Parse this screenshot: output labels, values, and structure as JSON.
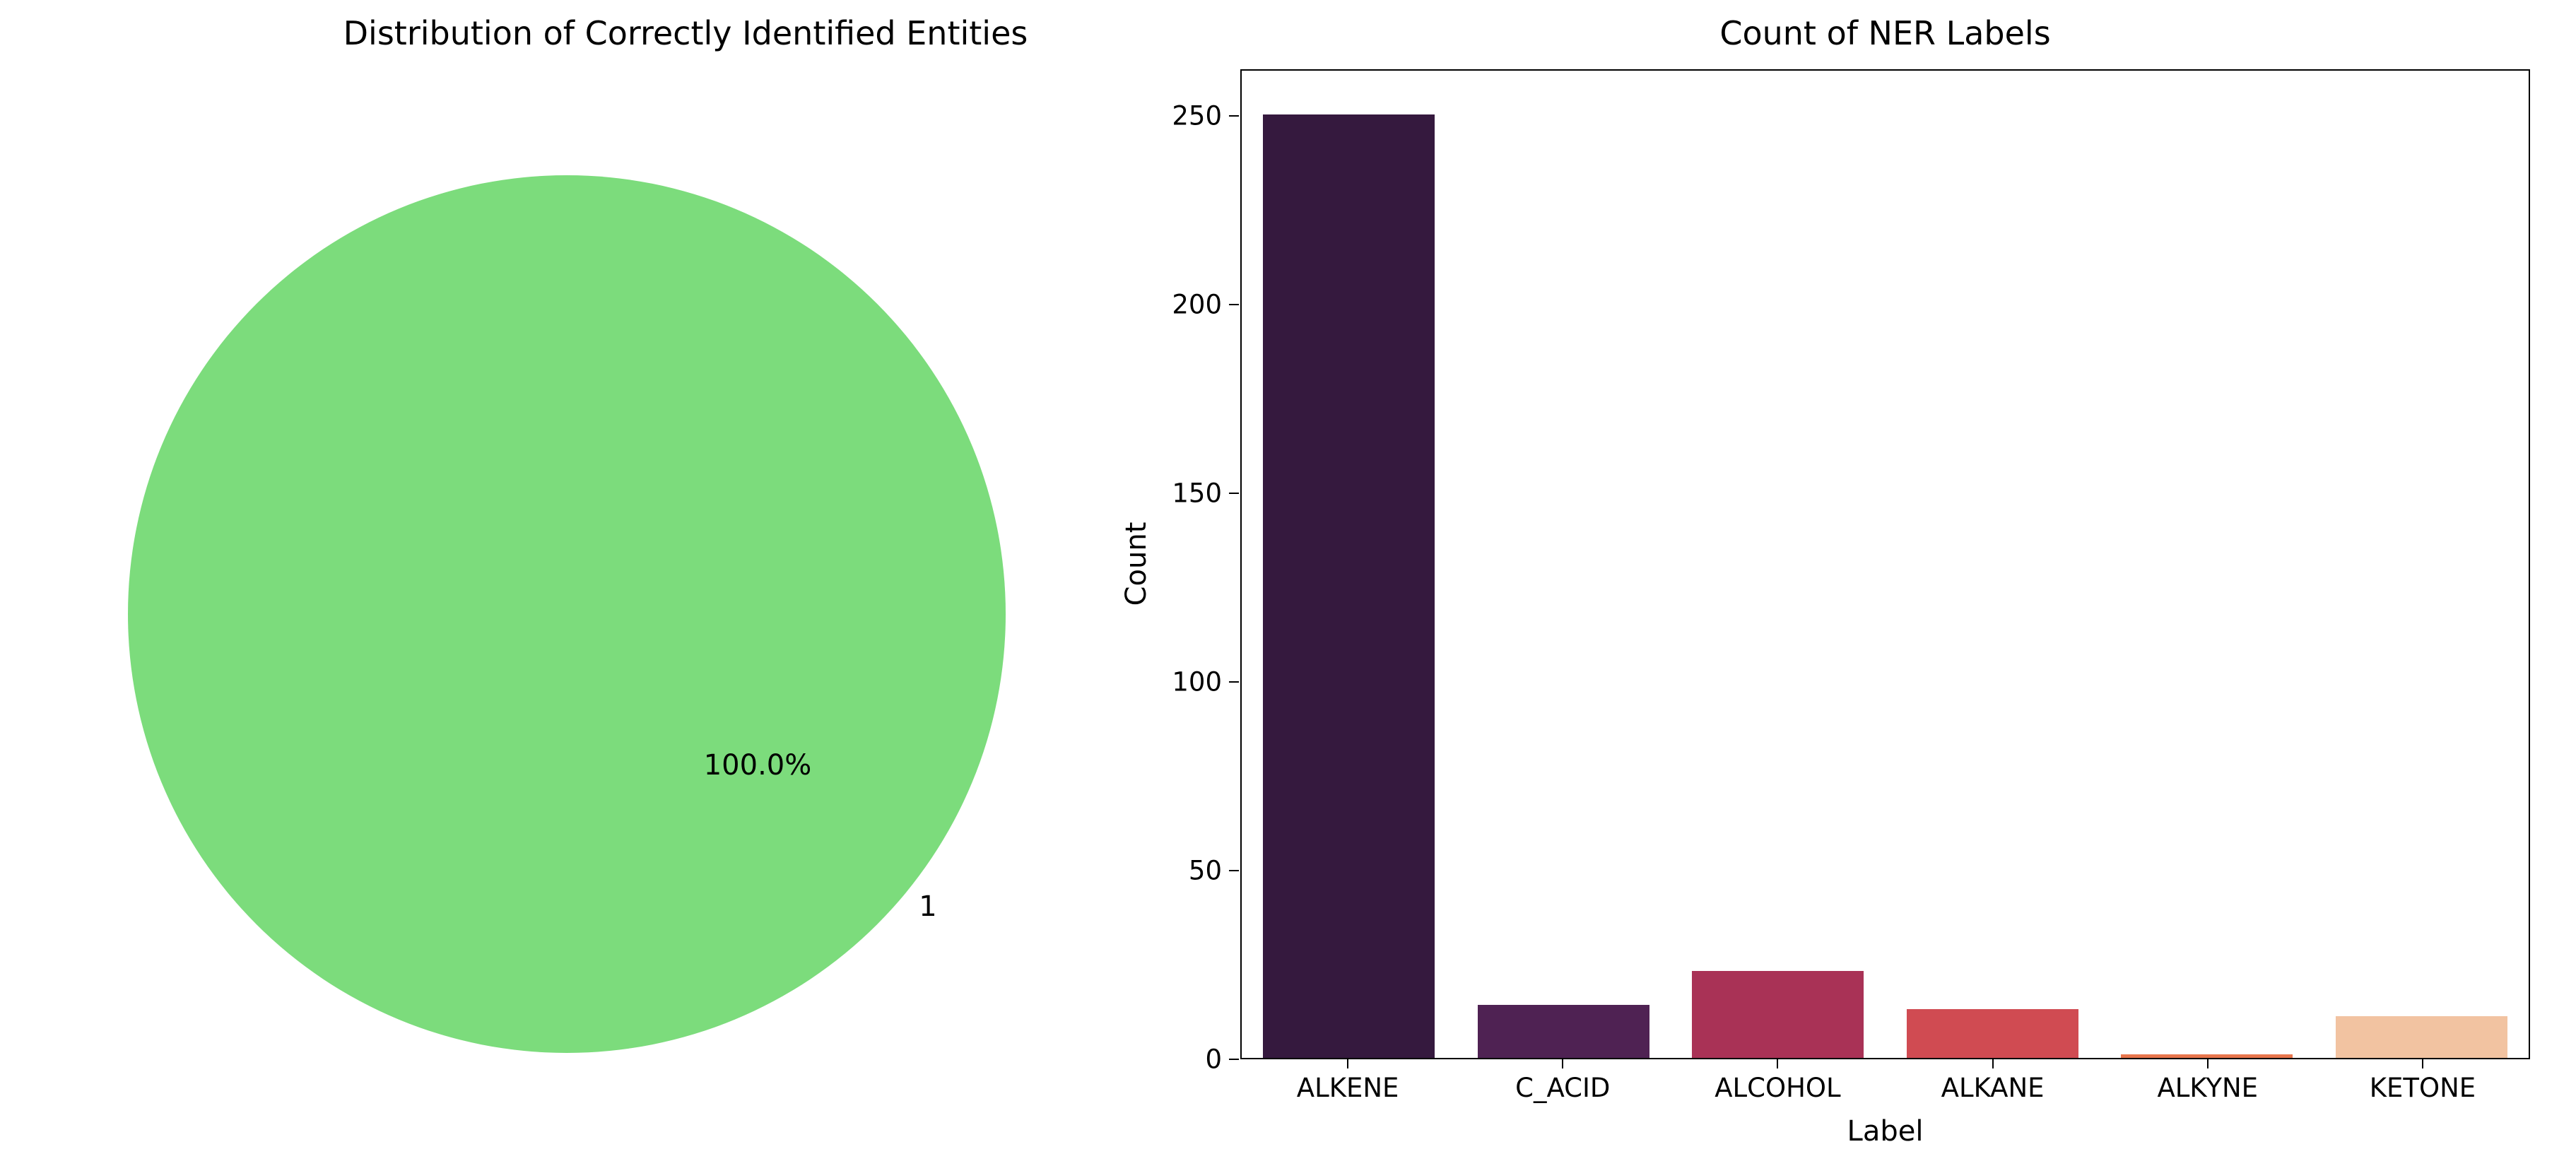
{
  "pie": {
    "title": "Distribution of Correctly Identified Entities",
    "pct_label": "100.0%",
    "wedge_label": "1",
    "color": "#7cdc7c"
  },
  "bar": {
    "title": "Count of NER Labels",
    "xlabel": "Label",
    "ylabel": "Count"
  },
  "chart_data": [
    {
      "type": "pie",
      "title": "Distribution of Correctly Identified Entities",
      "labels": [
        "1"
      ],
      "values": [
        100.0
      ],
      "autopct_labels": [
        "100.0%"
      ],
      "colors": [
        "#7cdc7c"
      ],
      "legend_position": "none"
    },
    {
      "type": "bar",
      "title": "Count of NER Labels",
      "xlabel": "Label",
      "ylabel": "Count",
      "categories": [
        "ALKENE",
        "C_ACID",
        "ALCOHOL",
        "ALKANE",
        "ALKYNE",
        "KETONE"
      ],
      "values": [
        250,
        14,
        23,
        13,
        1,
        11
      ],
      "colors": [
        "#35193e",
        "#4f2253",
        "#a93256",
        "#d04b52",
        "#e8764d",
        "#f2c3a1"
      ],
      "yticks": [
        0,
        50,
        100,
        150,
        200,
        250
      ],
      "ylim": [
        0,
        262
      ],
      "grid": false,
      "legend_position": "none"
    }
  ]
}
